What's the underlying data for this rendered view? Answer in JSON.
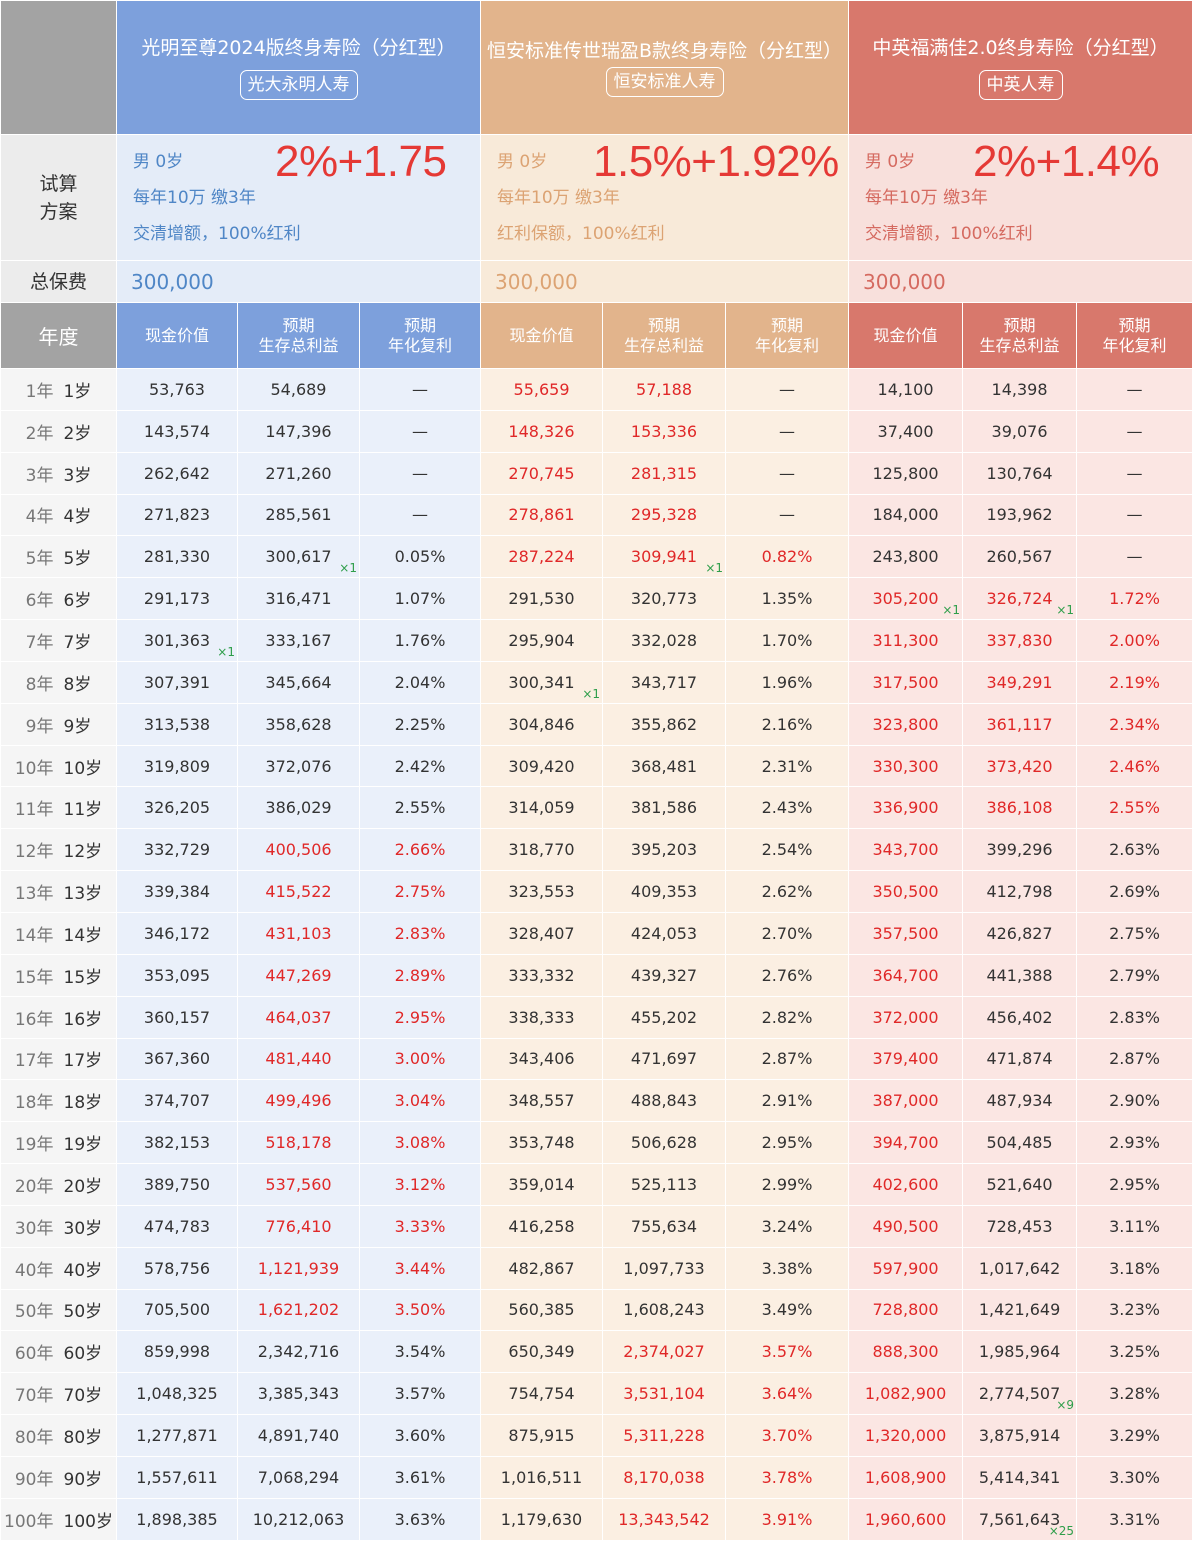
{
  "labels": {
    "plan": "试算\n方案",
    "plan_line1": "试算",
    "plan_line2": "方案",
    "premium": "总保费",
    "year": "年度"
  },
  "products": [
    {
      "name": "光明至尊2024版终身寿险（分红型）",
      "company": "光大永明人寿",
      "plan_gender_age": "男  0岁",
      "plan_payment": "每年10万 缴3年",
      "plan_option": "交清增额，100%红利",
      "rate": "2%+1.75",
      "premium": "300,000",
      "col_cash": "现金价值",
      "col_benefit": [
        "预期",
        "生存总利益"
      ],
      "col_irr": [
        "预期",
        "年化复利"
      ],
      "accent": "#7da0dc"
    },
    {
      "name": "恒安标准传世瑞盈B款终身寿险（分红型）",
      "company": "恒安标准人寿",
      "plan_gender_age": "男  0岁",
      "plan_payment": "每年10万 缴3年",
      "plan_option": "红利保额，100%红利",
      "rate": "1.5%+1.92%",
      "premium": "300,000",
      "col_cash": "现金价值",
      "col_benefit": [
        "预期",
        "生存总利益"
      ],
      "col_irr": [
        "预期",
        "年化复利"
      ],
      "accent": "#e2b48c"
    },
    {
      "name": "中英福满佳2.0终身寿险（分红型）",
      "company": "中英人寿",
      "plan_gender_age": "男  0岁",
      "plan_payment": "每年10万 缴3年",
      "plan_option": "交清增额，100%红利",
      "rate": "2%+1.4%",
      "premium": "300,000",
      "col_cash": "现金价值",
      "col_benefit": [
        "预期",
        "生存总利益"
      ],
      "col_irr": [
        "预期",
        "年化复利"
      ],
      "accent": "#d8786c"
    }
  ],
  "rows": [
    {
      "year": "1年",
      "age": "1岁",
      "v": [
        "53,763",
        "54,689",
        "—",
        "55,659",
        "57,188",
        "—",
        "14,100",
        "14,398",
        "—"
      ],
      "red": [
        0,
        0,
        0,
        1,
        1,
        0,
        0,
        0,
        0
      ],
      "mark": [
        "",
        "",
        "",
        "",
        "",
        "",
        "",
        "",
        ""
      ]
    },
    {
      "year": "2年",
      "age": "2岁",
      "v": [
        "143,574",
        "147,396",
        "—",
        "148,326",
        "153,336",
        "—",
        "37,400",
        "39,076",
        "—"
      ],
      "red": [
        0,
        0,
        0,
        1,
        1,
        0,
        0,
        0,
        0
      ],
      "mark": [
        "",
        "",
        "",
        "",
        "",
        "",
        "",
        "",
        ""
      ]
    },
    {
      "year": "3年",
      "age": "3岁",
      "v": [
        "262,642",
        "271,260",
        "—",
        "270,745",
        "281,315",
        "—",
        "125,800",
        "130,764",
        "—"
      ],
      "red": [
        0,
        0,
        0,
        1,
        1,
        0,
        0,
        0,
        0
      ],
      "mark": [
        "",
        "",
        "",
        "",
        "",
        "",
        "",
        "",
        ""
      ]
    },
    {
      "year": "4年",
      "age": "4岁",
      "v": [
        "271,823",
        "285,561",
        "—",
        "278,861",
        "295,328",
        "—",
        "184,000",
        "193,962",
        "—"
      ],
      "red": [
        0,
        0,
        0,
        1,
        1,
        0,
        0,
        0,
        0
      ],
      "mark": [
        "",
        "",
        "",
        "",
        "",
        "",
        "",
        "",
        ""
      ]
    },
    {
      "year": "5年",
      "age": "5岁",
      "v": [
        "281,330",
        "300,617",
        "0.05%",
        "287,224",
        "309,941",
        "0.82%",
        "243,800",
        "260,567",
        "—"
      ],
      "red": [
        0,
        0,
        0,
        1,
        1,
        1,
        0,
        0,
        0
      ],
      "mark": [
        "",
        "×1",
        "",
        "",
        "×1",
        "",
        "",
        "",
        ""
      ]
    },
    {
      "year": "6年",
      "age": "6岁",
      "v": [
        "291,173",
        "316,471",
        "1.07%",
        "291,530",
        "320,773",
        "1.35%",
        "305,200",
        "326,724",
        "1.72%"
      ],
      "red": [
        0,
        0,
        0,
        0,
        0,
        0,
        1,
        1,
        1
      ],
      "mark": [
        "",
        "",
        "",
        "",
        "",
        "",
        "×1",
        "×1",
        ""
      ]
    },
    {
      "year": "7年",
      "age": "7岁",
      "v": [
        "301,363",
        "333,167",
        "1.76%",
        "295,904",
        "332,028",
        "1.70%",
        "311,300",
        "337,830",
        "2.00%"
      ],
      "red": [
        0,
        0,
        0,
        0,
        0,
        0,
        1,
        1,
        1
      ],
      "mark": [
        "×1",
        "",
        "",
        "",
        "",
        "",
        "",
        "",
        ""
      ]
    },
    {
      "year": "8年",
      "age": "8岁",
      "v": [
        "307,391",
        "345,664",
        "2.04%",
        "300,341",
        "343,717",
        "1.96%",
        "317,500",
        "349,291",
        "2.19%"
      ],
      "red": [
        0,
        0,
        0,
        0,
        0,
        0,
        1,
        1,
        1
      ],
      "mark": [
        "",
        "",
        "",
        "×1",
        "",
        "",
        "",
        "",
        ""
      ]
    },
    {
      "year": "9年",
      "age": "9岁",
      "v": [
        "313,538",
        "358,628",
        "2.25%",
        "304,846",
        "355,862",
        "2.16%",
        "323,800",
        "361,117",
        "2.34%"
      ],
      "red": [
        0,
        0,
        0,
        0,
        0,
        0,
        1,
        1,
        1
      ],
      "mark": [
        "",
        "",
        "",
        "",
        "",
        "",
        "",
        "",
        ""
      ]
    },
    {
      "year": "10年",
      "age": "10岁",
      "v": [
        "319,809",
        "372,076",
        "2.42%",
        "309,420",
        "368,481",
        "2.31%",
        "330,300",
        "373,420",
        "2.46%"
      ],
      "red": [
        0,
        0,
        0,
        0,
        0,
        0,
        1,
        1,
        1
      ],
      "mark": [
        "",
        "",
        "",
        "",
        "",
        "",
        "",
        "",
        ""
      ]
    },
    {
      "year": "11年",
      "age": "11岁",
      "v": [
        "326,205",
        "386,029",
        "2.55%",
        "314,059",
        "381,586",
        "2.43%",
        "336,900",
        "386,108",
        "2.55%"
      ],
      "red": [
        0,
        0,
        0,
        0,
        0,
        0,
        1,
        1,
        1
      ],
      "mark": [
        "",
        "",
        "",
        "",
        "",
        "",
        "",
        "",
        ""
      ]
    },
    {
      "year": "12年",
      "age": "12岁",
      "v": [
        "332,729",
        "400,506",
        "2.66%",
        "318,770",
        "395,203",
        "2.54%",
        "343,700",
        "399,296",
        "2.63%"
      ],
      "red": [
        0,
        1,
        1,
        0,
        0,
        0,
        1,
        0,
        0
      ],
      "mark": [
        "",
        "",
        "",
        "",
        "",
        "",
        "",
        "",
        ""
      ]
    },
    {
      "year": "13年",
      "age": "13岁",
      "v": [
        "339,384",
        "415,522",
        "2.75%",
        "323,553",
        "409,353",
        "2.62%",
        "350,500",
        "412,798",
        "2.69%"
      ],
      "red": [
        0,
        1,
        1,
        0,
        0,
        0,
        1,
        0,
        0
      ],
      "mark": [
        "",
        "",
        "",
        "",
        "",
        "",
        "",
        "",
        ""
      ]
    },
    {
      "year": "14年",
      "age": "14岁",
      "v": [
        "346,172",
        "431,103",
        "2.83%",
        "328,407",
        "424,053",
        "2.70%",
        "357,500",
        "426,827",
        "2.75%"
      ],
      "red": [
        0,
        1,
        1,
        0,
        0,
        0,
        1,
        0,
        0
      ],
      "mark": [
        "",
        "",
        "",
        "",
        "",
        "",
        "",
        "",
        ""
      ]
    },
    {
      "year": "15年",
      "age": "15岁",
      "v": [
        "353,095",
        "447,269",
        "2.89%",
        "333,332",
        "439,327",
        "2.76%",
        "364,700",
        "441,388",
        "2.79%"
      ],
      "red": [
        0,
        1,
        1,
        0,
        0,
        0,
        1,
        0,
        0
      ],
      "mark": [
        "",
        "",
        "",
        "",
        "",
        "",
        "",
        "",
        ""
      ]
    },
    {
      "year": "16年",
      "age": "16岁",
      "v": [
        "360,157",
        "464,037",
        "2.95%",
        "338,333",
        "455,202",
        "2.82%",
        "372,000",
        "456,402",
        "2.83%"
      ],
      "red": [
        0,
        1,
        1,
        0,
        0,
        0,
        1,
        0,
        0
      ],
      "mark": [
        "",
        "",
        "",
        "",
        "",
        "",
        "",
        "",
        ""
      ]
    },
    {
      "year": "17年",
      "age": "17岁",
      "v": [
        "367,360",
        "481,440",
        "3.00%",
        "343,406",
        "471,697",
        "2.87%",
        "379,400",
        "471,874",
        "2.87%"
      ],
      "red": [
        0,
        1,
        1,
        0,
        0,
        0,
        1,
        0,
        0
      ],
      "mark": [
        "",
        "",
        "",
        "",
        "",
        "",
        "",
        "",
        ""
      ]
    },
    {
      "year": "18年",
      "age": "18岁",
      "v": [
        "374,707",
        "499,496",
        "3.04%",
        "348,557",
        "488,843",
        "2.91%",
        "387,000",
        "487,934",
        "2.90%"
      ],
      "red": [
        0,
        1,
        1,
        0,
        0,
        0,
        1,
        0,
        0
      ],
      "mark": [
        "",
        "",
        "",
        "",
        "",
        "",
        "",
        "",
        ""
      ]
    },
    {
      "year": "19年",
      "age": "19岁",
      "v": [
        "382,153",
        "518,178",
        "3.08%",
        "353,748",
        "506,628",
        "2.95%",
        "394,700",
        "504,485",
        "2.93%"
      ],
      "red": [
        0,
        1,
        1,
        0,
        0,
        0,
        1,
        0,
        0
      ],
      "mark": [
        "",
        "",
        "",
        "",
        "",
        "",
        "",
        "",
        ""
      ]
    },
    {
      "year": "20年",
      "age": "20岁",
      "v": [
        "389,750",
        "537,560",
        "3.12%",
        "359,014",
        "525,113",
        "2.99%",
        "402,600",
        "521,640",
        "2.95%"
      ],
      "red": [
        0,
        1,
        1,
        0,
        0,
        0,
        1,
        0,
        0
      ],
      "mark": [
        "",
        "",
        "",
        "",
        "",
        "",
        "",
        "",
        ""
      ]
    },
    {
      "year": "30年",
      "age": "30岁",
      "v": [
        "474,783",
        "776,410",
        "3.33%",
        "416,258",
        "755,634",
        "3.24%",
        "490,500",
        "728,453",
        "3.11%"
      ],
      "red": [
        0,
        1,
        1,
        0,
        0,
        0,
        1,
        0,
        0
      ],
      "mark": [
        "",
        "",
        "",
        "",
        "",
        "",
        "",
        "",
        ""
      ]
    },
    {
      "year": "40年",
      "age": "40岁",
      "v": [
        "578,756",
        "1,121,939",
        "3.44%",
        "482,867",
        "1,097,733",
        "3.38%",
        "597,900",
        "1,017,642",
        "3.18%"
      ],
      "red": [
        0,
        1,
        1,
        0,
        0,
        0,
        1,
        0,
        0
      ],
      "mark": [
        "",
        "",
        "",
        "",
        "",
        "",
        "",
        "",
        ""
      ]
    },
    {
      "year": "50年",
      "age": "50岁",
      "v": [
        "705,500",
        "1,621,202",
        "3.50%",
        "560,385",
        "1,608,243",
        "3.49%",
        "728,800",
        "1,421,649",
        "3.23%"
      ],
      "red": [
        0,
        1,
        1,
        0,
        0,
        0,
        1,
        0,
        0
      ],
      "mark": [
        "",
        "",
        "",
        "",
        "",
        "",
        "",
        "",
        ""
      ]
    },
    {
      "year": "60年",
      "age": "60岁",
      "v": [
        "859,998",
        "2,342,716",
        "3.54%",
        "650,349",
        "2,374,027",
        "3.57%",
        "888,300",
        "1,985,964",
        "3.25%"
      ],
      "red": [
        0,
        0,
        0,
        0,
        1,
        1,
        1,
        0,
        0
      ],
      "mark": [
        "",
        "",
        "",
        "",
        "",
        "",
        "",
        "",
        ""
      ]
    },
    {
      "year": "70年",
      "age": "70岁",
      "v": [
        "1,048,325",
        "3,385,343",
        "3.57%",
        "754,754",
        "3,531,104",
        "3.64%",
        "1,082,900",
        "2,774,507",
        "3.28%"
      ],
      "red": [
        0,
        0,
        0,
        0,
        1,
        1,
        1,
        0,
        0
      ],
      "mark": [
        "",
        "",
        "",
        "",
        "",
        "",
        "",
        "×9",
        ""
      ]
    },
    {
      "year": "80年",
      "age": "80岁",
      "v": [
        "1,277,871",
        "4,891,740",
        "3.60%",
        "875,915",
        "5,311,228",
        "3.70%",
        "1,320,000",
        "3,875,914",
        "3.29%"
      ],
      "red": [
        0,
        0,
        0,
        0,
        1,
        1,
        1,
        0,
        0
      ],
      "mark": [
        "",
        "",
        "",
        "",
        "",
        "",
        "",
        "",
        ""
      ]
    },
    {
      "year": "90年",
      "age": "90岁",
      "v": [
        "1,557,611",
        "7,068,294",
        "3.61%",
        "1,016,511",
        "8,170,038",
        "3.78%",
        "1,608,900",
        "5,414,341",
        "3.30%"
      ],
      "red": [
        0,
        0,
        0,
        0,
        1,
        1,
        1,
        0,
        0
      ],
      "mark": [
        "",
        "",
        "",
        "",
        "",
        "",
        "",
        "",
        ""
      ]
    },
    {
      "year": "100年",
      "age": "100岁",
      "v": [
        "1,898,385",
        "10,212,063",
        "3.63%",
        "1,179,630",
        "13,343,542",
        "3.91%",
        "1,960,600",
        "7,561,643",
        "3.31%"
      ],
      "red": [
        0,
        0,
        0,
        0,
        1,
        1,
        1,
        0,
        0
      ],
      "mark": [
        "",
        "",
        "",
        "",
        "",
        "",
        "",
        "×25",
        ""
      ]
    }
  ]
}
